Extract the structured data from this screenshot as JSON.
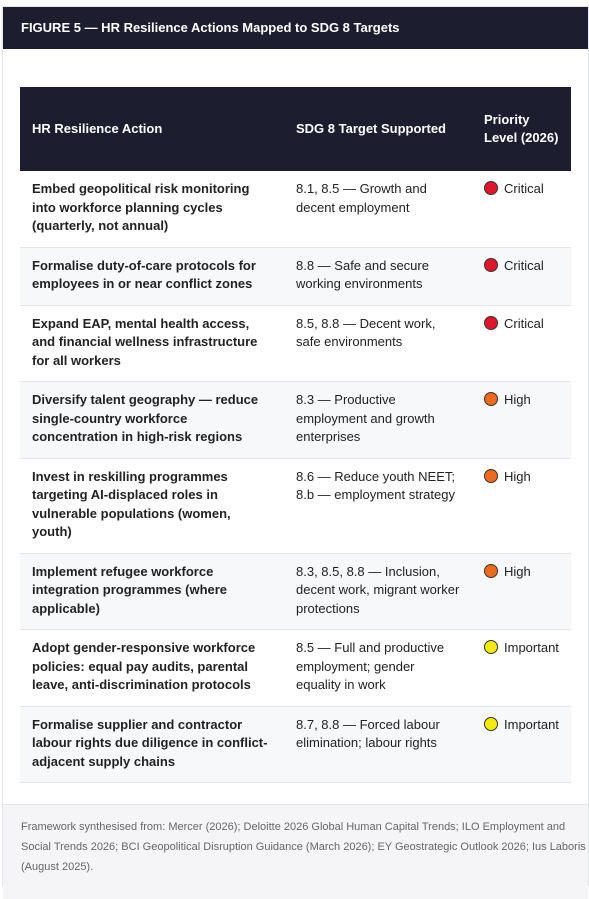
{
  "header": {
    "title": "FIGURE 5 — HR Resilience Actions Mapped to SDG 8 Targets"
  },
  "table": {
    "columns": [
      "HR Resilience Action",
      "SDG 8 Target Supported",
      "Priority Level (2026)"
    ],
    "rows": [
      {
        "action": "Embed geopolitical risk monitoring into workforce planning cycles (quarterly, not annual)",
        "target": "8.1, 8.5 — Growth and decent employment",
        "priority": "Critical",
        "color": "#e0172b"
      },
      {
        "action": "Formalise duty-of-care protocols for employees in or near conflict zones",
        "target": "8.8 — Safe and secure working environments",
        "priority": "Critical",
        "color": "#e0172b"
      },
      {
        "action": "Expand EAP, mental health access, and financial wellness infrastructure for all workers",
        "target": "8.5, 8.8 — Decent work, safe environments",
        "priority": "Critical",
        "color": "#e0172b"
      },
      {
        "action": "Diversify talent geography — reduce single-country workforce concentration in high-risk regions",
        "target": "8.3 — Productive employment and growth enterprises",
        "priority": "High",
        "color": "#ee6a1c"
      },
      {
        "action": "Invest in reskilling programmes targeting AI-displaced roles in vulnerable populations (women, youth)",
        "target": "8.6 — Reduce youth NEET; 8.b — employment strategy",
        "priority": "High",
        "color": "#ee6a1c"
      },
      {
        "action": "Implement refugee workforce integration programmes (where applicable)",
        "target": "8.3, 8.5, 8.8 — Inclusion, decent work, migrant worker protections",
        "priority": "High",
        "color": "#ee6a1c"
      },
      {
        "action": "Adopt gender-responsive workforce policies: equal pay audits, parental leave, anti-discrimination protocols",
        "target": "8.5 — Full and productive employment; gender equality in work",
        "priority": "Important",
        "color": "#f5ea0c"
      },
      {
        "action": "Formalise supplier and contractor labour rights due diligence in conflict-adjacent supply chains",
        "target": "8.7, 8.8 — Forced labour elimination; labour rights",
        "priority": "Important",
        "color": "#f5ea0c"
      }
    ]
  },
  "footer": {
    "source": "Framework synthesised from: Mercer (2026); Deloitte 2026 Global Human Capital Trends; ILO Employment and Social Trends 2026; BCI Geopolitical Disruption Guidance (March 2026); EY Geostrategic Outlook 2026; Ius Laboris (August 2025)."
  }
}
